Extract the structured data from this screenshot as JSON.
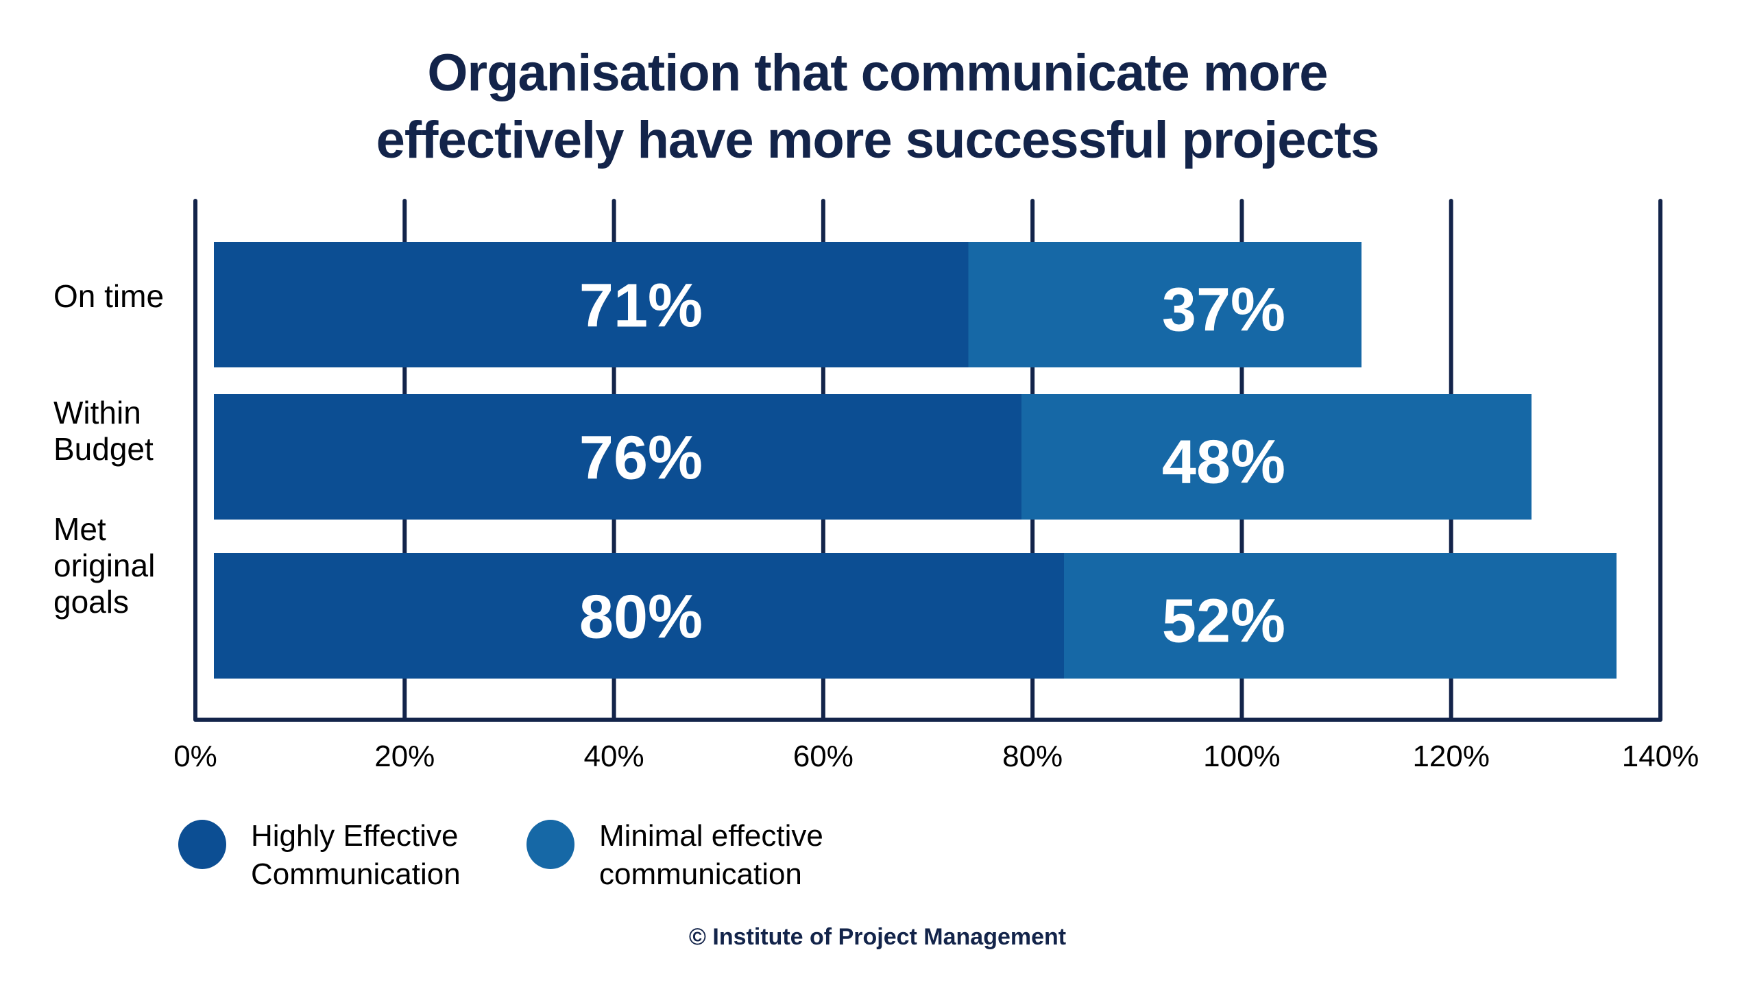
{
  "chart_data": {
    "type": "bar",
    "orientation": "horizontal",
    "stacked": true,
    "title": "Organisation that communicate more effectively have more successful projects",
    "title_lines": [
      "Organisation that communicate more",
      "effectively have more successful projects"
    ],
    "categories": [
      "On time",
      "Within Budget",
      "Met original goals"
    ],
    "category_lines": [
      [
        "On time"
      ],
      [
        "Within",
        "Budget"
      ],
      [
        "Met",
        "original",
        "goals"
      ]
    ],
    "series": [
      {
        "name": "Highly Effective Communication",
        "name_lines": [
          "Highly Effective",
          "Communication"
        ],
        "color": "#0C4E93",
        "values": [
          71,
          76,
          80
        ],
        "labels": [
          "71%",
          "76%",
          "80%"
        ]
      },
      {
        "name": "Minimal effective communication",
        "name_lines": [
          "Minimal effective",
          "communication"
        ],
        "color": "#1668A6",
        "values": [
          37,
          48,
          52
        ],
        "labels": [
          "37%",
          "48%",
          "52%"
        ]
      }
    ],
    "xlabel": "",
    "ylabel": "",
    "xlim": [
      0,
      140
    ],
    "xticks": [
      0,
      20,
      40,
      60,
      80,
      100,
      120,
      140
    ],
    "xtick_labels": [
      "0%",
      "20%",
      "40%",
      "60%",
      "80%",
      "100%",
      "120%",
      "140%"
    ],
    "grid": true,
    "legend_position": "bottom-left",
    "axis_color": "#13244A"
  },
  "footer": "© Institute of Project Management"
}
